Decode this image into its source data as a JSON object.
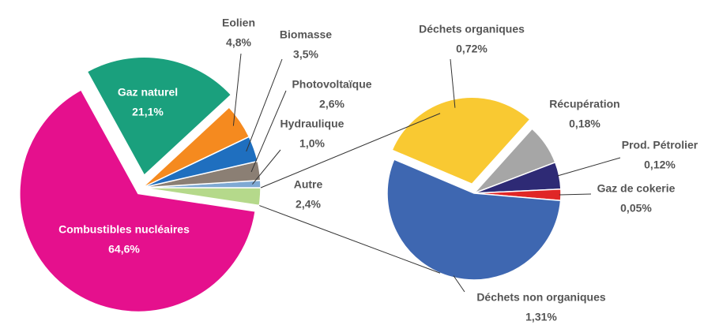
{
  "chart_data": [
    {
      "type": "pie",
      "categories": [
        "Autre",
        "Hydraulique",
        "Photovoltaïque",
        "Biomasse",
        "Eolien",
        "Gaz naturel",
        "Combustibles nucléaires"
      ],
      "values": [
        2.4,
        1.0,
        2.6,
        3.5,
        4.8,
        21.1,
        64.6
      ],
      "value_labels": [
        "2,4%",
        "1,0%",
        "2,6%",
        "3,5%",
        "4,8%",
        "21,1%",
        "64,6%"
      ],
      "colors": [
        "#b5d98b",
        "#7fa9d3",
        "#8b7f74",
        "#1f6fbf",
        "#f58a1f",
        "#1aa07d",
        "#e5108d"
      ]
    },
    {
      "type": "pie",
      "categories": [
        "Déchets organiques",
        "Récupération",
        "Prod. Pétrolier",
        "Gaz de cokerie",
        "Déchets non organiques"
      ],
      "values": [
        0.72,
        0.18,
        0.12,
        0.05,
        1.31
      ],
      "value_labels": [
        "0,72%",
        "0,18%",
        "0,12%",
        "0,05%",
        "1,31%"
      ],
      "colors": [
        "#f9c932",
        "#a6a6a6",
        "#2e2a75",
        "#e02626",
        "#3e67b1"
      ]
    }
  ]
}
